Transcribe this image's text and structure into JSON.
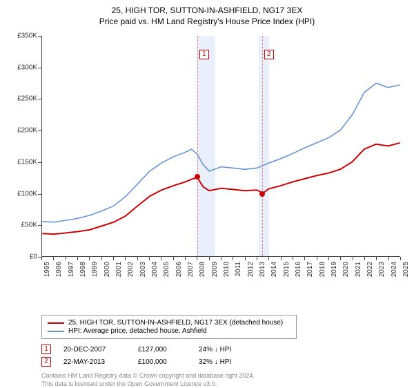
{
  "title": "25, HIGH TOR, SUTTON-IN-ASHFIELD, NG17 3EX",
  "subtitle": "Price paid vs. HM Land Registry's House Price Index (HPI)",
  "chart": {
    "type": "line",
    "background_color": "#ffffff",
    "ylim": [
      0,
      350000
    ],
    "ytick_step": 50000,
    "ytick_labels": [
      "£0",
      "£50K",
      "£100K",
      "£150K",
      "£200K",
      "£250K",
      "£300K",
      "£350K"
    ],
    "x_years": [
      1995,
      1996,
      1997,
      1998,
      1999,
      2000,
      2001,
      2002,
      2003,
      2004,
      2005,
      2006,
      2007,
      2008,
      2009,
      2010,
      2011,
      2012,
      2013,
      2014,
      2015,
      2016,
      2017,
      2018,
      2019,
      2020,
      2021,
      2022,
      2023,
      2024,
      2025
    ],
    "shade_ranges": [
      [
        2007.9,
        2009.5
      ],
      [
        2013.1,
        2014.0
      ]
    ],
    "vlines": [
      2007.97,
      2013.39
    ],
    "vline_labels": [
      "1",
      "2"
    ],
    "vline_color": "#e88080",
    "series": [
      {
        "name": "property",
        "label": "25, HIGH TOR, SUTTON-IN-ASHFIELD, NG17 3EX (detached house)",
        "color": "#cc0000",
        "width": 2,
        "years": [
          1995,
          1996,
          1997,
          1998,
          1999,
          2000,
          2001,
          2002,
          2003,
          2004,
          2005,
          2006,
          2007,
          2007.5,
          2008,
          2008.5,
          2009,
          2010,
          2011,
          2012,
          2013,
          2013.5,
          2014,
          2015,
          2016,
          2017,
          2018,
          2019,
          2020,
          2021,
          2022,
          2023,
          2024,
          2025
        ],
        "values": [
          36000,
          35000,
          37000,
          39000,
          42000,
          48000,
          54000,
          64000,
          80000,
          95000,
          105000,
          112000,
          118000,
          122000,
          125000,
          110000,
          104000,
          108000,
          106000,
          104000,
          105000,
          100000,
          107000,
          112000,
          118000,
          123000,
          128000,
          132000,
          138000,
          150000,
          170000,
          178000,
          175000,
          180000
        ]
      },
      {
        "name": "hpi",
        "label": "HPI: Average price, detached house, Ashfield",
        "color": "#5b8fd6",
        "width": 1.5,
        "years": [
          1995,
          1996,
          1997,
          1998,
          1999,
          2000,
          2001,
          2002,
          2003,
          2004,
          2005,
          2006,
          2007,
          2007.5,
          2008,
          2008.5,
          2009,
          2010,
          2011,
          2012,
          2013,
          2014,
          2015,
          2016,
          2017,
          2018,
          2019,
          2020,
          2021,
          2022,
          2023,
          2024,
          2025
        ],
        "values": [
          55000,
          54000,
          57000,
          60000,
          65000,
          72000,
          80000,
          95000,
          115000,
          135000,
          148000,
          158000,
          165000,
          170000,
          162000,
          145000,
          135000,
          142000,
          140000,
          138000,
          140000,
          148000,
          155000,
          163000,
          172000,
          180000,
          188000,
          200000,
          225000,
          260000,
          275000,
          268000,
          272000
        ]
      }
    ],
    "sale_points": [
      {
        "year": 2007.97,
        "value": 127000,
        "color": "#cc0000"
      },
      {
        "year": 2013.39,
        "value": 100000,
        "color": "#cc0000"
      }
    ]
  },
  "legend": [
    {
      "color": "#cc0000",
      "label": "25, HIGH TOR, SUTTON-IN-ASHFIELD, NG17 3EX (detached house)"
    },
    {
      "color": "#5b8fd6",
      "label": "HPI: Average price, detached house, Ashfield"
    }
  ],
  "sales": [
    {
      "idx": "1",
      "date": "20-DEC-2007",
      "price": "£127,000",
      "diff": "24% ↓ HPI"
    },
    {
      "idx": "2",
      "date": "22-MAY-2013",
      "price": "£100,000",
      "diff": "32% ↓ HPI"
    }
  ],
  "footer_line1": "Contains HM Land Registry data © Crown copyright and database right 2024.",
  "footer_line2": "This data is licensed under the Open Government Licence v3.0."
}
